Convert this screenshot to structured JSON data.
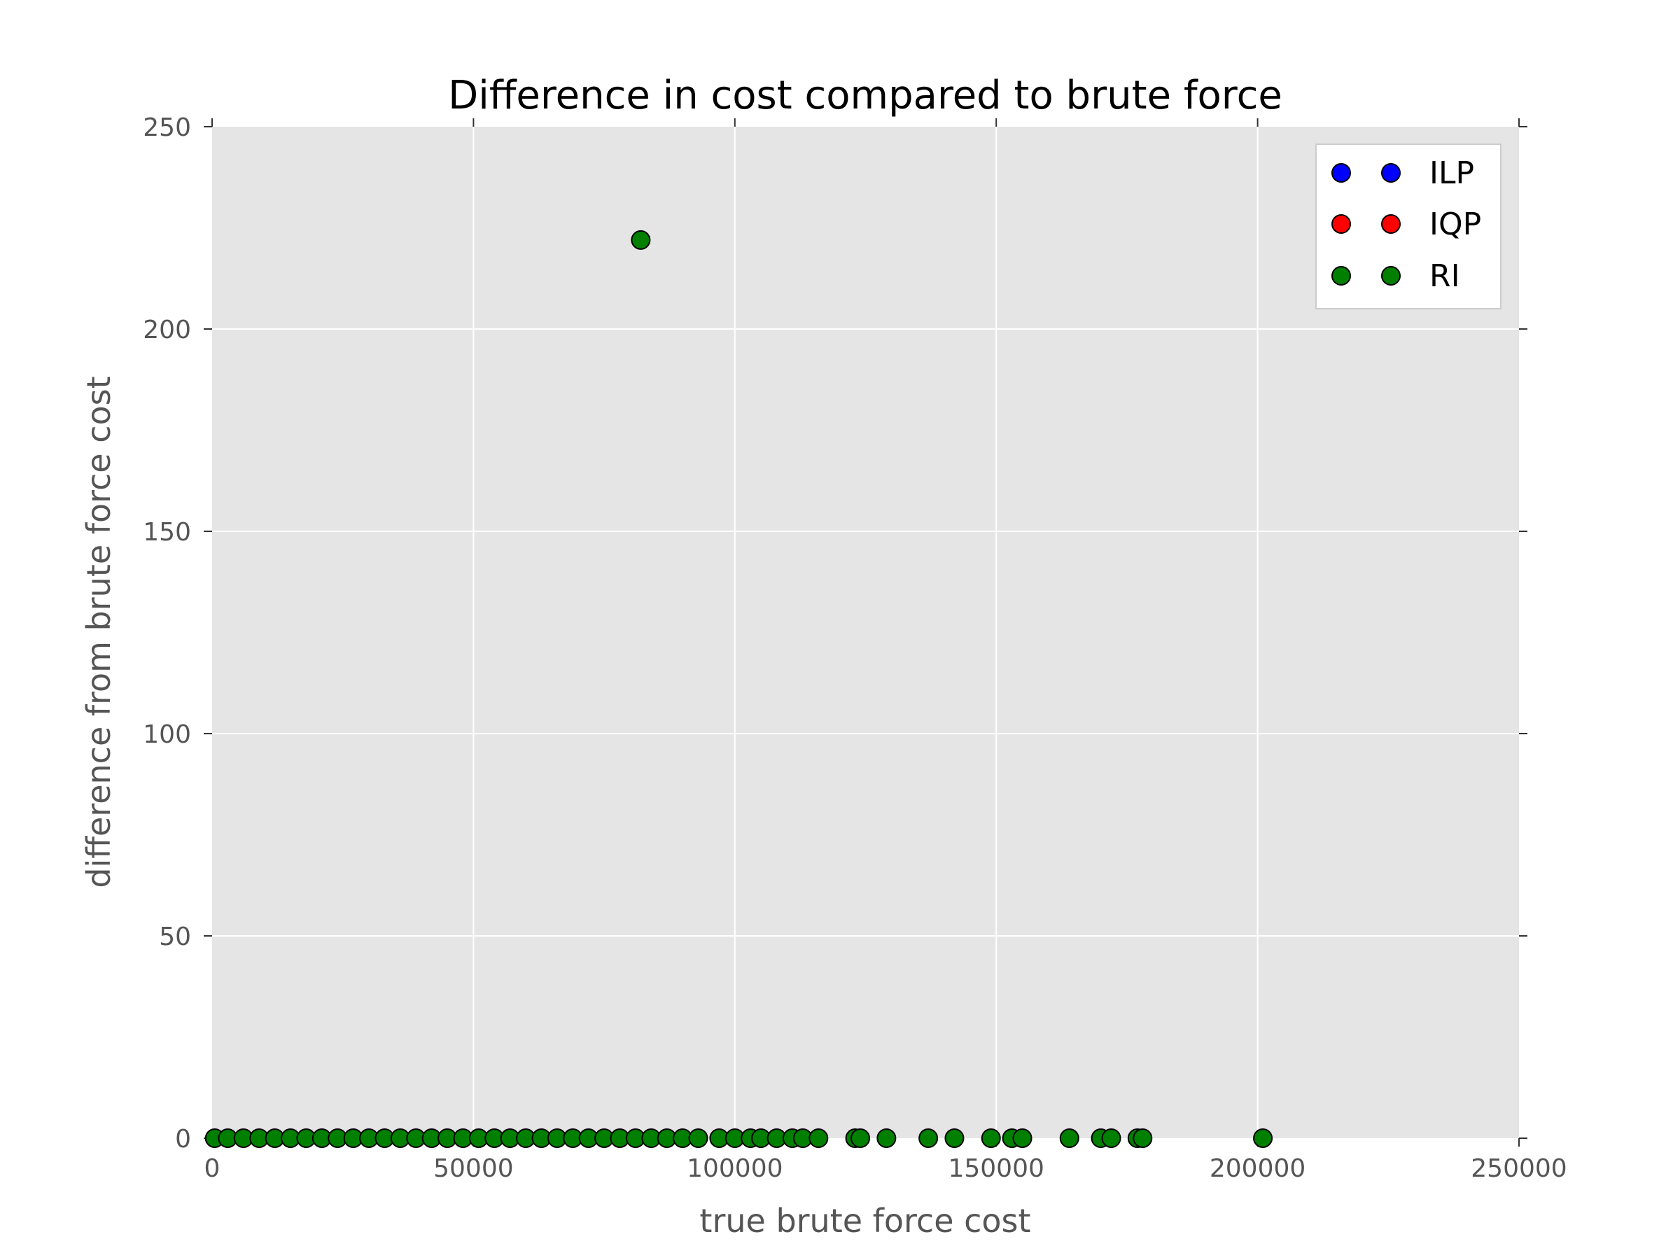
{
  "chart_data": {
    "type": "scatter",
    "title": "Difference in cost compared to brute force",
    "xlabel": "true brute force cost",
    "ylabel": "difference from brute force cost",
    "xlim": [
      0,
      250000
    ],
    "ylim": [
      0,
      250
    ],
    "xticks": [
      0,
      50000,
      100000,
      150000,
      200000,
      250000
    ],
    "yticks": [
      0,
      50,
      100,
      150,
      200,
      250
    ],
    "grid": true,
    "legend_position": "top-right",
    "series": [
      {
        "name": "ILP",
        "color": "#0000ff",
        "points": []
      },
      {
        "name": "IQP",
        "color": "#ff0000",
        "points": []
      },
      {
        "name": "RI",
        "color": "#007f00",
        "points": [
          [
            82000,
            222
          ],
          [
            500,
            0
          ],
          [
            3000,
            0
          ],
          [
            6000,
            0
          ],
          [
            9000,
            0
          ],
          [
            12000,
            0
          ],
          [
            15000,
            0
          ],
          [
            18000,
            0
          ],
          [
            21000,
            0
          ],
          [
            24000,
            0
          ],
          [
            27000,
            0
          ],
          [
            30000,
            0
          ],
          [
            33000,
            0
          ],
          [
            36000,
            0
          ],
          [
            39000,
            0
          ],
          [
            42000,
            0
          ],
          [
            45000,
            0
          ],
          [
            48000,
            0
          ],
          [
            51000,
            0
          ],
          [
            54000,
            0
          ],
          [
            57000,
            0
          ],
          [
            60000,
            0
          ],
          [
            63000,
            0
          ],
          [
            66000,
            0
          ],
          [
            69000,
            0
          ],
          [
            72000,
            0
          ],
          [
            75000,
            0
          ],
          [
            78000,
            0
          ],
          [
            81000,
            0
          ],
          [
            84000,
            0
          ],
          [
            87000,
            0
          ],
          [
            90000,
            0
          ],
          [
            93000,
            0
          ],
          [
            97000,
            0
          ],
          [
            100000,
            0
          ],
          [
            103000,
            0
          ],
          [
            105000,
            0
          ],
          [
            108000,
            0
          ],
          [
            111000,
            0
          ],
          [
            113000,
            0
          ],
          [
            116000,
            0
          ],
          [
            123000,
            0
          ],
          [
            124000,
            0
          ],
          [
            129000,
            0
          ],
          [
            137000,
            0
          ],
          [
            142000,
            0
          ],
          [
            149000,
            0
          ],
          [
            153000,
            0
          ],
          [
            155000,
            0
          ],
          [
            164000,
            0
          ],
          [
            170000,
            0
          ],
          [
            172000,
            0
          ],
          [
            177000,
            0
          ],
          [
            178000,
            0
          ],
          [
            201000,
            0
          ]
        ]
      }
    ]
  }
}
